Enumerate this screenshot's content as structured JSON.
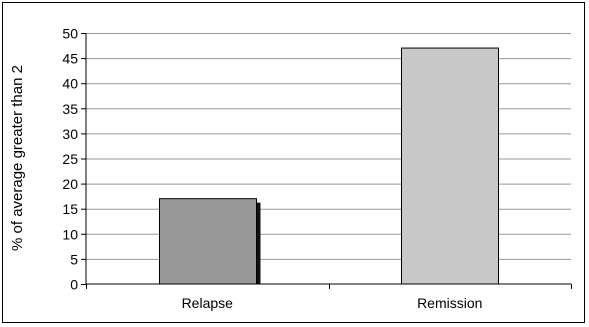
{
  "chart_data": {
    "type": "bar",
    "categories": [
      "Relapse",
      "Remission"
    ],
    "values": [
      17,
      47
    ],
    "title": "",
    "xlabel": "",
    "ylabel": "% of average greater than 2",
    "ylim": [
      0,
      50
    ],
    "yticks": [
      0,
      5,
      10,
      15,
      20,
      25,
      30,
      35,
      40,
      45,
      50
    ],
    "grid": true,
    "legend": "none",
    "colors": {
      "bars": [
        "#999999",
        "#c8c8c8"
      ],
      "bar_stroke": "#000000",
      "bar_shadow": "#111111",
      "grid": "#9a9a9a",
      "axis": "#000000"
    }
  }
}
